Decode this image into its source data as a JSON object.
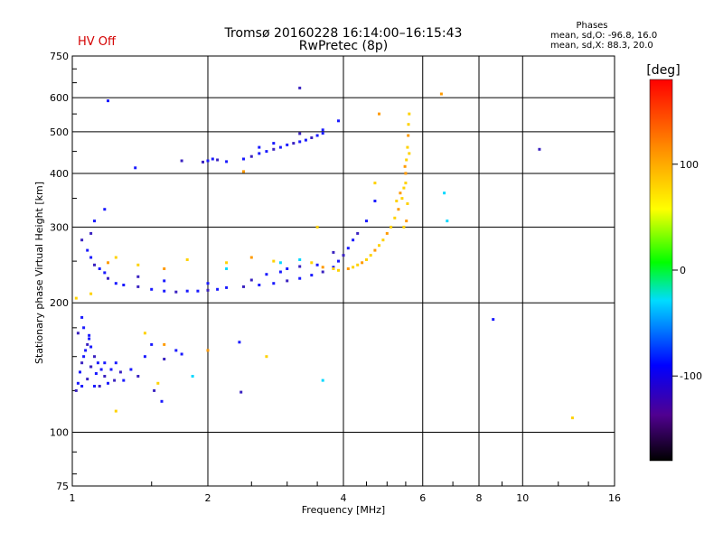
{
  "header": {
    "title_line1": "Tromsø 20160228 16:14:00–16:15:43",
    "title_line2": "RwPretec (8p)",
    "hv_status": "HV Off",
    "hv_color": "#d40000"
  },
  "phases_box": {
    "title": "Phases",
    "line_o": "mean, sd,O: -96.8, 16.0",
    "line_x": "mean, sd,X: 88.3, 20.0"
  },
  "colorbar": {
    "unit_label": "[deg]",
    "ticks": [
      "100",
      "0",
      "-100"
    ],
    "tick_values": [
      100,
      0,
      -100
    ],
    "range": [
      -180,
      180
    ]
  },
  "chart_data": {
    "type": "scatter",
    "title": "Tromsø 20160228 16:14:00–16:15:43 RwPretec (8p)",
    "xlabel": "Frequency [MHz]",
    "ylabel": "Stationary phase Virtual Height [km]",
    "xscale": "log",
    "yscale": "log",
    "xlim": [
      1,
      16
    ],
    "ylim": [
      75,
      750
    ],
    "xticks": [
      1,
      2,
      4,
      6,
      8,
      10,
      16
    ],
    "xtick_labels": [
      "1",
      "2",
      "4",
      "6",
      "8",
      "10",
      "16"
    ],
    "yticks": [
      75,
      100,
      200,
      300,
      400,
      500,
      600,
      750
    ],
    "ytick_labels": [
      "75",
      "100",
      "200",
      "300",
      "400",
      "500",
      "600",
      "750"
    ],
    "grid": true,
    "color_variable": "phase [deg]",
    "series": [
      {
        "name": "O-mode low layer (blue)",
        "points": [
          [
            1.02,
            125
          ],
          [
            1.03,
            130
          ],
          [
            1.04,
            138
          ],
          [
            1.05,
            145
          ],
          [
            1.06,
            150
          ],
          [
            1.07,
            155
          ],
          [
            1.08,
            160
          ],
          [
            1.09,
            165
          ],
          [
            1.1,
            158
          ],
          [
            1.12,
            150
          ],
          [
            1.14,
            145
          ],
          [
            1.16,
            140
          ],
          [
            1.18,
            135
          ],
          [
            1.2,
            130
          ],
          [
            1.05,
            128
          ],
          [
            1.08,
            133
          ],
          [
            1.1,
            142
          ],
          [
            1.13,
            137
          ],
          [
            1.15,
            128
          ],
          [
            1.22,
            140
          ],
          [
            1.25,
            145
          ],
          [
            1.28,
            138
          ],
          [
            1.3,
            132
          ],
          [
            1.35,
            140
          ],
          [
            1.4,
            135
          ],
          [
            1.45,
            150
          ],
          [
            1.5,
            160
          ],
          [
            1.03,
            170
          ],
          [
            1.06,
            175
          ],
          [
            1.09,
            168
          ],
          [
            1.6,
            148
          ],
          [
            1.7,
            155
          ],
          [
            1.75,
            152
          ],
          [
            1.52,
            125
          ],
          [
            1.58,
            118
          ],
          [
            1.05,
            185
          ],
          [
            1.1,
            142
          ],
          [
            1.12,
            128
          ],
          [
            1.18,
            145
          ],
          [
            1.24,
            132
          ]
        ]
      },
      {
        "name": "O-mode F2 trace (blue)",
        "points": [
          [
            1.05,
            280
          ],
          [
            1.08,
            265
          ],
          [
            1.1,
            255
          ],
          [
            1.12,
            245
          ],
          [
            1.15,
            240
          ],
          [
            1.18,
            235
          ],
          [
            1.2,
            228
          ],
          [
            1.25,
            222
          ],
          [
            1.3,
            220
          ],
          [
            1.4,
            218
          ],
          [
            1.5,
            215
          ],
          [
            1.6,
            213
          ],
          [
            1.7,
            212
          ],
          [
            1.8,
            213
          ],
          [
            1.9,
            213
          ],
          [
            2.0,
            214
          ],
          [
            2.1,
            215
          ],
          [
            2.2,
            217
          ],
          [
            2.4,
            218
          ],
          [
            2.6,
            220
          ],
          [
            2.8,
            222
          ],
          [
            3.0,
            225
          ],
          [
            3.2,
            228
          ],
          [
            3.4,
            232
          ],
          [
            3.6,
            236
          ],
          [
            3.8,
            242
          ],
          [
            3.9,
            250
          ],
          [
            4.0,
            258
          ],
          [
            4.1,
            268
          ],
          [
            4.2,
            280
          ],
          [
            4.3,
            290
          ],
          [
            4.5,
            310
          ],
          [
            4.7,
            345
          ],
          [
            1.1,
            290
          ],
          [
            1.12,
            310
          ],
          [
            1.18,
            330
          ],
          [
            1.4,
            230
          ],
          [
            1.6,
            225
          ],
          [
            2.0,
            222
          ],
          [
            2.5,
            226
          ],
          [
            3.0,
            240
          ],
          [
            3.5,
            245
          ],
          [
            3.8,
            262
          ],
          [
            2.7,
            233
          ],
          [
            2.9,
            236
          ],
          [
            3.2,
            243
          ]
        ]
      },
      {
        "name": "O-mode upper trace (blue)",
        "points": [
          [
            1.95,
            425
          ],
          [
            2.0,
            428
          ],
          [
            2.05,
            432
          ],
          [
            2.1,
            430
          ],
          [
            2.2,
            426
          ],
          [
            2.4,
            432
          ],
          [
            2.5,
            438
          ],
          [
            2.6,
            445
          ],
          [
            2.7,
            450
          ],
          [
            2.8,
            455
          ],
          [
            2.9,
            460
          ],
          [
            3.0,
            466
          ],
          [
            3.1,
            470
          ],
          [
            3.2,
            474
          ],
          [
            3.3,
            478
          ],
          [
            3.4,
            484
          ],
          [
            3.5,
            490
          ],
          [
            3.6,
            496
          ],
          [
            1.75,
            428
          ],
          [
            2.6,
            460
          ],
          [
            2.8,
            470
          ],
          [
            3.2,
            495
          ],
          [
            3.6,
            505
          ],
          [
            1.2,
            590
          ],
          [
            3.2,
            632
          ],
          [
            3.9,
            530
          ],
          [
            1.38,
            412
          ],
          [
            10.9,
            455
          ],
          [
            8.6,
            183
          ],
          [
            2.35,
            162
          ],
          [
            2.37,
            124
          ]
        ]
      },
      {
        "name": "X-mode trace (yellow/orange)",
        "points": [
          [
            4.1,
            240
          ],
          [
            4.2,
            242
          ],
          [
            4.3,
            245
          ],
          [
            4.4,
            248
          ],
          [
            4.5,
            252
          ],
          [
            4.6,
            258
          ],
          [
            4.7,
            265
          ],
          [
            4.8,
            272
          ],
          [
            4.9,
            280
          ],
          [
            5.0,
            290
          ],
          [
            5.1,
            300
          ],
          [
            5.2,
            315
          ],
          [
            5.3,
            330
          ],
          [
            5.4,
            350
          ],
          [
            5.45,
            370
          ],
          [
            5.5,
            400
          ],
          [
            5.52,
            430
          ],
          [
            5.55,
            460
          ],
          [
            5.57,
            490
          ],
          [
            5.58,
            520
          ],
          [
            5.6,
            550
          ],
          [
            5.52,
            310
          ],
          [
            5.55,
            340
          ],
          [
            5.5,
            380
          ],
          [
            5.48,
            415
          ],
          [
            5.6,
            445
          ],
          [
            5.45,
            300
          ],
          [
            5.35,
            360
          ],
          [
            5.25,
            345
          ],
          [
            4.7,
            380
          ],
          [
            4.8,
            550
          ],
          [
            3.9,
            238
          ],
          [
            3.8,
            240
          ],
          [
            3.6,
            242
          ],
          [
            3.4,
            248
          ],
          [
            2.8,
            250
          ],
          [
            2.5,
            255
          ],
          [
            2.2,
            248
          ],
          [
            1.8,
            252
          ],
          [
            1.6,
            240
          ],
          [
            1.4,
            245
          ],
          [
            1.25,
            255
          ],
          [
            1.2,
            248
          ],
          [
            1.02,
            205
          ],
          [
            1.1,
            210
          ],
          [
            1.6,
            160
          ],
          [
            1.45,
            170
          ],
          [
            1.55,
            130
          ],
          [
            2.0,
            155
          ],
          [
            2.7,
            150
          ],
          [
            1.25,
            112
          ],
          [
            6.6,
            612
          ],
          [
            12.9,
            108
          ],
          [
            3.5,
            300
          ],
          [
            2.4,
            404
          ]
        ]
      },
      {
        "name": "cyan points",
        "points": [
          [
            1.85,
            135
          ],
          [
            6.7,
            360
          ],
          [
            6.8,
            310
          ],
          [
            2.2,
            240
          ],
          [
            2.9,
            248
          ],
          [
            3.2,
            252
          ],
          [
            3.6,
            132
          ]
        ]
      }
    ]
  }
}
